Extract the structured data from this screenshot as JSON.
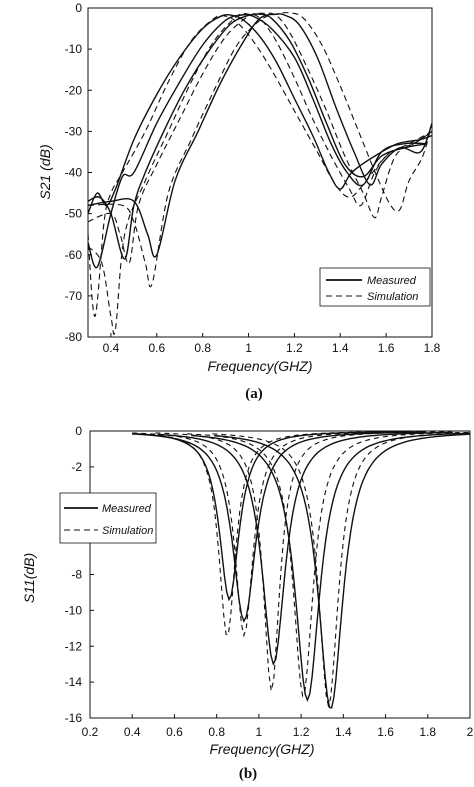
{
  "chart_data": [
    {
      "type": "line",
      "caption": "(a)",
      "xlabel": "Frequency(GHZ)",
      "ylabel": "S21 (dB)",
      "xlim": [
        0.3,
        1.8
      ],
      "ylim": [
        -80,
        0
      ],
      "xticks": [
        "0.4",
        "0.6",
        "0.8",
        "1",
        "1.2",
        "1.4",
        "1.6",
        "1.8"
      ],
      "yticks": [
        "0",
        "-10",
        "-20",
        "-30",
        "-40",
        "-50",
        "-60",
        "-70",
        "-80"
      ],
      "grid": false,
      "legend": {
        "position": "bottom-right",
        "entries": [
          "Measured",
          "Simulation"
        ]
      },
      "series": [
        {
          "name": "Measured",
          "style": "solid",
          "curves": [
            {
              "x": [
                0.3,
                0.34,
                0.38,
                0.42,
                0.5,
                0.6,
                0.7,
                0.8,
                0.88,
                0.93,
                0.98,
                1.05,
                1.12,
                1.2,
                1.28,
                1.35,
                1.4,
                1.45,
                1.55,
                1.65,
                1.75,
                1.8
              ],
              "y": [
                -50,
                -45,
                -48,
                -44,
                -32,
                -21,
                -12,
                -5,
                -2,
                -1.8,
                -3,
                -7,
                -13,
                -22,
                -31,
                -40,
                -44,
                -40,
                -36,
                -33,
                -32,
                -31
              ]
            },
            {
              "x": [
                0.3,
                0.34,
                0.4,
                0.45,
                0.5,
                0.6,
                0.7,
                0.8,
                0.9,
                0.97,
                1.02,
                1.1,
                1.2,
                1.28,
                1.36,
                1.43,
                1.5,
                1.58,
                1.68,
                1.78
              ],
              "y": [
                -57,
                -63,
                -50,
                -41,
                -40,
                -28,
                -18,
                -9,
                -3,
                -1.7,
                -2,
                -5,
                -12,
                -22,
                -33,
                -40,
                -43,
                -35,
                -33,
                -33
              ]
            },
            {
              "x": [
                0.3,
                0.35,
                0.4,
                0.46,
                0.5,
                0.55,
                0.63,
                0.72,
                0.82,
                0.92,
                1.0,
                1.05,
                1.1,
                1.18,
                1.26,
                1.34,
                1.42,
                1.5,
                1.58,
                1.68,
                1.78
              ],
              "y": [
                -47,
                -46,
                -50,
                -61,
                -48,
                -40,
                -30,
                -20,
                -11,
                -4,
                -1.8,
                -1.5,
                -2.5,
                -8,
                -17,
                -28,
                -38,
                -41,
                -36,
                -34,
                -33
              ]
            },
            {
              "x": [
                0.3,
                0.4,
                0.5,
                0.56,
                0.6,
                0.68,
                0.78,
                0.88,
                0.98,
                1.05,
                1.12,
                1.16,
                1.22,
                1.3,
                1.38,
                1.46,
                1.53,
                1.58,
                1.66,
                1.75,
                1.8
              ],
              "y": [
                -48,
                -47,
                -47,
                -55,
                -60,
                -42,
                -30,
                -18,
                -8,
                -2.5,
                -1.5,
                -1.8,
                -4,
                -12,
                -24,
                -35,
                -43,
                -38,
                -34,
                -35,
                -28
              ]
            }
          ]
        },
        {
          "name": "Simulation",
          "style": "dashed",
          "curves": [
            {
              "x": [
                0.3,
                0.33,
                0.37,
                0.4,
                0.45,
                0.55,
                0.65,
                0.75,
                0.85,
                0.9,
                0.95,
                1.02,
                1.1,
                1.2,
                1.3,
                1.38,
                1.44,
                1.5,
                1.6,
                1.7,
                1.8
              ],
              "y": [
                -55,
                -75,
                -52,
                -45,
                -40,
                -30,
                -18,
                -8,
                -2.5,
                -2,
                -3.5,
                -8,
                -15,
                -25,
                -35,
                -43,
                -46,
                -43,
                -36,
                -33,
                -30
              ]
            },
            {
              "x": [
                0.3,
                0.36,
                0.4,
                0.42,
                0.46,
                0.55,
                0.65,
                0.75,
                0.85,
                0.95,
                1.0,
                1.05,
                1.12,
                1.2,
                1.28,
                1.36,
                1.44,
                1.49,
                1.55,
                1.62,
                1.72,
                1.8
              ],
              "y": [
                -58,
                -62,
                -75,
                -78,
                -55,
                -42,
                -30,
                -18,
                -8,
                -2,
                -1.5,
                -2.5,
                -8,
                -17,
                -27,
                -36,
                -44,
                -48,
                -40,
                -35,
                -33,
                -30
              ]
            },
            {
              "x": [
                0.3,
                0.4,
                0.44,
                0.48,
                0.52,
                0.6,
                0.7,
                0.8,
                0.9,
                1.0,
                1.06,
                1.12,
                1.18,
                1.26,
                1.34,
                1.42,
                1.5,
                1.55,
                1.58,
                1.64,
                1.72,
                1.8
              ],
              "y": [
                -52,
                -50,
                -55,
                -62,
                -48,
                -38,
                -27,
                -16,
                -7,
                -2,
                -1.3,
                -1.8,
                -6,
                -15,
                -25,
                -36,
                -45,
                -51,
                -46,
                -36,
                -33,
                -30
              ]
            },
            {
              "x": [
                0.3,
                0.45,
                0.5,
                0.55,
                0.58,
                0.65,
                0.75,
                0.85,
                0.95,
                1.05,
                1.12,
                1.18,
                1.24,
                1.32,
                1.4,
                1.48,
                1.56,
                1.62,
                1.66,
                1.7,
                1.76,
                1.8
              ],
              "y": [
                -48,
                -48,
                -52,
                -62,
                -67,
                -45,
                -32,
                -20,
                -9,
                -3,
                -1.5,
                -1.2,
                -2.5,
                -9,
                -19,
                -30,
                -41,
                -48,
                -49,
                -42,
                -36,
                -28
              ]
            }
          ]
        }
      ]
    },
    {
      "type": "line",
      "caption": "(b)",
      "xlabel": "Frequency(GHZ)",
      "ylabel": "S11(dB)",
      "xlim": [
        0.2,
        2.0
      ],
      "ylim": [
        -16,
        0
      ],
      "xticks": [
        "0.2",
        "0.4",
        "0.6",
        "0.8",
        "1",
        "1.2",
        "1.4",
        "1.6",
        "1.8",
        "2"
      ],
      "yticks": [
        "0",
        "-2",
        "-4",
        "-6",
        "-8",
        "-10",
        "-12",
        "-14",
        "-16"
      ],
      "grid": false,
      "legend": {
        "position": "top-left",
        "entries": [
          "Measured",
          "Simulation"
        ]
      },
      "series": [
        {
          "name": "Measured",
          "style": "solid",
          "curves": [
            {
              "center": 0.86,
              "depth": -9.4,
              "width": 0.06
            },
            {
              "center": 0.93,
              "depth": -10.6,
              "width": 0.07
            },
            {
              "center": 1.07,
              "depth": -13.0,
              "width": 0.07
            },
            {
              "center": 1.23,
              "depth": -15.0,
              "width": 0.075
            },
            {
              "center": 1.34,
              "depth": -15.5,
              "width": 0.075
            }
          ]
        },
        {
          "name": "Simulation",
          "style": "dashed",
          "curves": [
            {
              "center": 0.85,
              "depth": -11.5,
              "width": 0.05
            },
            {
              "center": 0.93,
              "depth": -11.4,
              "width": 0.055
            },
            {
              "center": 1.06,
              "depth": -14.5,
              "width": 0.05
            },
            {
              "center": 1.21,
              "depth": -14.8,
              "width": 0.06
            },
            {
              "center": 1.33,
              "depth": -15.3,
              "width": 0.06
            }
          ]
        }
      ]
    }
  ]
}
